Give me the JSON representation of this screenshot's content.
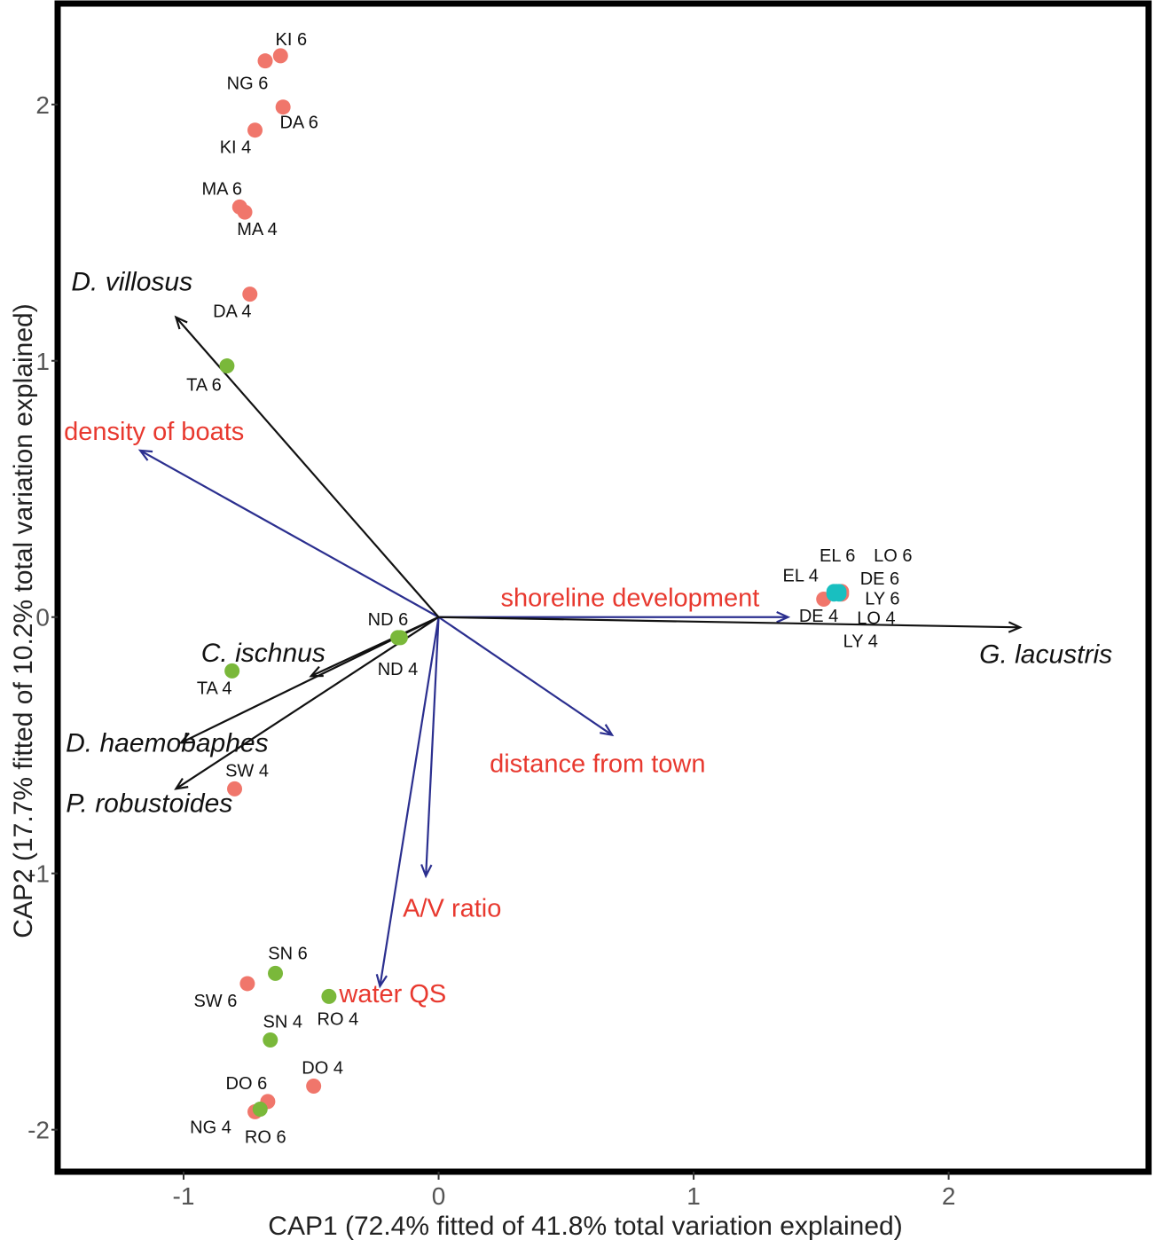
{
  "chart_data": {
    "type": "scatter",
    "xlabel": "CAP1 (72.4% fitted of 41.8% total variation explained)",
    "ylabel": "CAP2 (17.7% fitted of 10.2% total variation explained)",
    "xlim": [
      -1.48,
      2.77
    ],
    "ylim": [
      -2.15,
      2.38
    ],
    "xticks": [
      -1,
      0,
      1,
      2
    ],
    "yticks": [
      -2,
      -1,
      0,
      1,
      2
    ],
    "grid": false,
    "colors": {
      "red_group": "#f0766b",
      "green_group": "#7ab83a",
      "cyan_group": "#19bfc0",
      "env_arrow": "#2b2f8f",
      "species_arrow": "#111111",
      "env_text": "#e8392f"
    },
    "points": [
      {
        "label": "KI 6",
        "x": -0.62,
        "y": 2.19,
        "group": "red"
      },
      {
        "label": "NG 6",
        "x": -0.68,
        "y": 2.17,
        "group": "red"
      },
      {
        "label": "DA 6",
        "x": -0.61,
        "y": 1.99,
        "group": "red"
      },
      {
        "label": "KI 4",
        "x": -0.72,
        "y": 1.9,
        "group": "red"
      },
      {
        "label": "MA 6",
        "x": -0.78,
        "y": 1.6,
        "group": "red"
      },
      {
        "label": "MA 4",
        "x": -0.76,
        "y": 1.58,
        "group": "red"
      },
      {
        "label": "DA 4",
        "x": -0.74,
        "y": 1.26,
        "group": "red"
      },
      {
        "label": "TA 6",
        "x": -0.83,
        "y": 0.98,
        "group": "green"
      },
      {
        "label": "EL 4",
        "x": 1.51,
        "y": 0.07,
        "group": "red"
      },
      {
        "label": "EL 6",
        "x": 1.55,
        "y": 0.1,
        "group": "cyan"
      },
      {
        "label": "LO 6",
        "x": 1.58,
        "y": 0.1,
        "group": "red"
      },
      {
        "label": "DE 6",
        "x": 1.57,
        "y": 0.1,
        "group": "cyan"
      },
      {
        "label": "LY 6",
        "x": 1.58,
        "y": 0.09,
        "group": "red"
      },
      {
        "label": "DE 4",
        "x": 1.56,
        "y": 0.1,
        "group": "cyan"
      },
      {
        "label": "LO 4",
        "x": 1.57,
        "y": 0.09,
        "group": "cyan"
      },
      {
        "label": "LY 4",
        "x": 1.55,
        "y": 0.09,
        "group": "cyan"
      },
      {
        "label": "ND 6",
        "x": -0.15,
        "y": -0.08,
        "group": "green"
      },
      {
        "label": "ND 4",
        "x": -0.16,
        "y": -0.08,
        "group": "green"
      },
      {
        "label": "TA 4",
        "x": -0.81,
        "y": -0.21,
        "group": "green"
      },
      {
        "label": "SW 4",
        "x": -0.8,
        "y": -0.67,
        "group": "red"
      },
      {
        "label": "SN 6",
        "x": -0.64,
        "y": -1.39,
        "group": "green"
      },
      {
        "label": "SW 6",
        "x": -0.75,
        "y": -1.43,
        "group": "red"
      },
      {
        "label": "RO 4",
        "x": -0.43,
        "y": -1.48,
        "group": "green"
      },
      {
        "label": "SN 4",
        "x": -0.66,
        "y": -1.65,
        "group": "green"
      },
      {
        "label": "DO 4",
        "x": -0.49,
        "y": -1.83,
        "group": "red"
      },
      {
        "label": "DO 6",
        "x": -0.67,
        "y": -1.89,
        "group": "red"
      },
      {
        "label": "NG 4",
        "x": -0.72,
        "y": -1.93,
        "group": "red"
      },
      {
        "label": "RO 6",
        "x": -0.7,
        "y": -1.92,
        "group": "green"
      }
    ],
    "species_vectors": [
      {
        "label": "D. villosus",
        "x": -1.03,
        "y": 1.17
      },
      {
        "label": "C. ischnus",
        "x": -0.5,
        "y": -0.23
      },
      {
        "label": "D. haemobaphes",
        "x": -1.01,
        "y": -0.49
      },
      {
        "label": "P. robustoides",
        "x": -1.03,
        "y": -0.67
      },
      {
        "label": "G. lacustris",
        "x": 2.28,
        "y": -0.04
      }
    ],
    "environment_vectors": [
      {
        "label": "density of boats",
        "x": -1.17,
        "y": 0.65
      },
      {
        "label": "shoreline development",
        "x": 1.37,
        "y": 0.0
      },
      {
        "label": "distance from town",
        "x": 0.68,
        "y": -0.46
      },
      {
        "label": "A/V ratio",
        "x": -0.05,
        "y": -1.01
      },
      {
        "label": "water QS",
        "x": -0.23,
        "y": -1.44
      }
    ]
  }
}
